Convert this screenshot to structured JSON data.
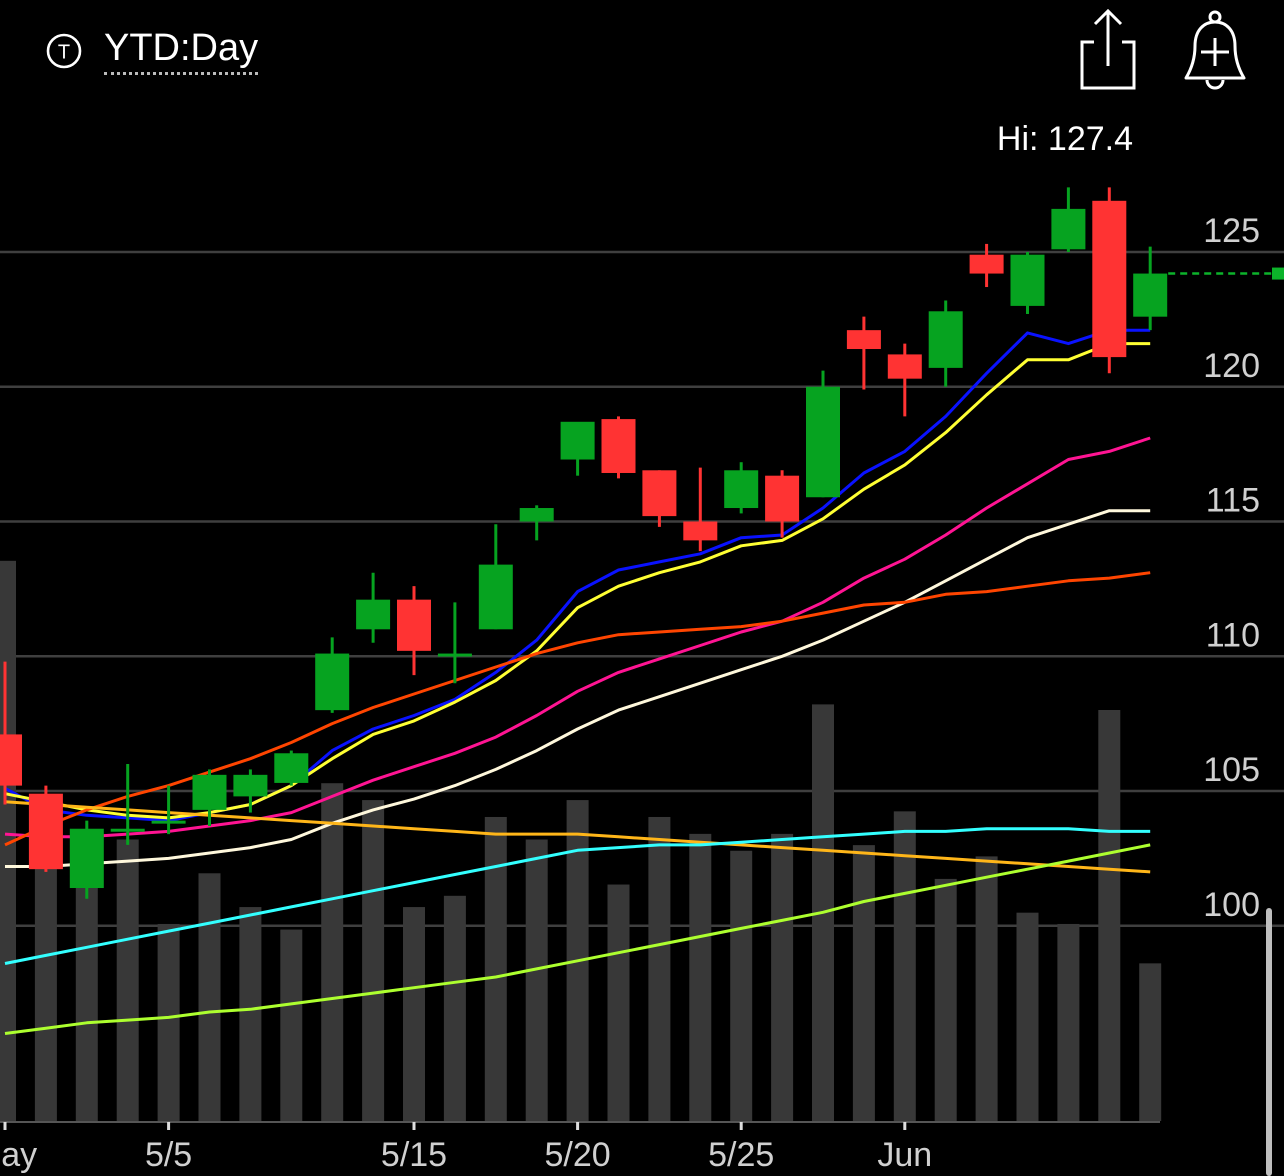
{
  "header": {
    "timeframe_icon": "T",
    "timeframe": "YTD:Day",
    "share_icon": "share-icon",
    "alert_icon": "bell-plus-icon"
  },
  "chart_data": {
    "type": "candlestick",
    "hi_label": "Hi: 127.4",
    "ylim": [
      97,
      130
    ],
    "y_ticks": [
      125,
      120,
      115,
      110,
      105,
      100
    ],
    "x_tick_labels": [
      {
        "label": "May",
        "index": 0
      },
      {
        "label": "5/5",
        "index": 4
      },
      {
        "label": "5/15",
        "index": 10
      },
      {
        "label": "5/20",
        "index": 14
      },
      {
        "label": "5/25",
        "index": 18
      },
      {
        "label": "Jun",
        "index": 22
      }
    ],
    "last_price": 124.2,
    "candles": [
      {
        "o": 107.1,
        "h": 109.8,
        "l": 104.5,
        "c": 105.2
      },
      {
        "o": 104.9,
        "h": 105.2,
        "l": 102.0,
        "c": 102.1
      },
      {
        "o": 101.4,
        "h": 103.9,
        "l": 101.0,
        "c": 103.6
      },
      {
        "o": 103.6,
        "h": 106.0,
        "l": 103.0,
        "c": 103.6
      },
      {
        "o": 103.9,
        "h": 105.2,
        "l": 103.4,
        "c": 103.9
      },
      {
        "o": 104.3,
        "h": 105.8,
        "l": 103.7,
        "c": 105.6
      },
      {
        "o": 104.8,
        "h": 105.8,
        "l": 104.2,
        "c": 105.6
      },
      {
        "o": 105.3,
        "h": 106.5,
        "l": 105.2,
        "c": 106.4
      },
      {
        "o": 108.0,
        "h": 110.7,
        "l": 107.9,
        "c": 110.1
      },
      {
        "o": 111.0,
        "h": 113.1,
        "l": 110.5,
        "c": 112.1
      },
      {
        "o": 112.1,
        "h": 112.6,
        "l": 109.3,
        "c": 110.2
      },
      {
        "o": 110.1,
        "h": 112.0,
        "l": 109.0,
        "c": 110.1
      },
      {
        "o": 111.0,
        "h": 114.9,
        "l": 111.0,
        "c": 113.4
      },
      {
        "o": 115.0,
        "h": 115.6,
        "l": 114.3,
        "c": 115.5
      },
      {
        "o": 117.3,
        "h": 118.5,
        "l": 116.7,
        "c": 118.7
      },
      {
        "o": 118.8,
        "h": 118.9,
        "l": 116.6,
        "c": 116.8
      },
      {
        "o": 116.9,
        "h": 116.9,
        "l": 114.8,
        "c": 115.2
      },
      {
        "o": 115.0,
        "h": 117.0,
        "l": 113.9,
        "c": 114.3
      },
      {
        "o": 115.5,
        "h": 117.2,
        "l": 115.3,
        "c": 116.9
      },
      {
        "o": 116.7,
        "h": 116.9,
        "l": 114.4,
        "c": 115.0
      },
      {
        "o": 115.9,
        "h": 120.6,
        "l": 115.9,
        "c": 120.0
      },
      {
        "o": 122.1,
        "h": 122.6,
        "l": 119.9,
        "c": 121.4
      },
      {
        "o": 121.2,
        "h": 121.6,
        "l": 118.9,
        "c": 120.3
      },
      {
        "o": 120.7,
        "h": 123.2,
        "l": 120.0,
        "c": 122.8
      },
      {
        "o": 124.9,
        "h": 125.3,
        "l": 123.7,
        "c": 124.2
      },
      {
        "o": 123.0,
        "h": 125.0,
        "l": 122.7,
        "c": 124.9
      },
      {
        "o": 125.1,
        "h": 127.4,
        "l": 125.0,
        "c": 126.6
      },
      {
        "o": 126.9,
        "h": 127.4,
        "l": 120.5,
        "c": 121.1
      },
      {
        "o": 122.6,
        "h": 125.2,
        "l": 122.1,
        "c": 124.2
      }
    ],
    "volume": [
      0.995,
      0.48,
      0.45,
      0.5,
      0.35,
      0.44,
      0.38,
      0.34,
      0.6,
      0.57,
      0.38,
      0.4,
      0.54,
      0.5,
      0.57,
      0.42,
      0.54,
      0.51,
      0.48,
      0.51,
      0.74,
      0.49,
      0.55,
      0.43,
      0.47,
      0.37,
      0.35,
      0.73,
      0.28
    ],
    "series": [
      {
        "color": "#0a12ff",
        "values": [
          105.1,
          104.3,
          104.1,
          104.0,
          103.9,
          104.2,
          104.5,
          105.2,
          106.5,
          107.3,
          107.8,
          108.4,
          109.4,
          110.6,
          112.4,
          113.2,
          113.5,
          113.8,
          114.4,
          114.5,
          115.5,
          116.8,
          117.6,
          118.9,
          120.5,
          122.0,
          121.6,
          122.1,
          122.1
        ]
      },
      {
        "color": "#ffff33",
        "values": [
          104.9,
          104.6,
          104.3,
          104.1,
          104.0,
          104.2,
          104.5,
          105.2,
          106.2,
          107.1,
          107.6,
          108.3,
          109.1,
          110.2,
          111.8,
          112.6,
          113.1,
          113.5,
          114.1,
          114.3,
          115.1,
          116.2,
          117.1,
          118.3,
          119.7,
          121.0,
          121.0,
          121.6,
          121.6
        ]
      },
      {
        "color": "#ff1493",
        "values": [
          103.4,
          103.3,
          103.3,
          103.4,
          103.5,
          103.7,
          103.9,
          104.2,
          104.8,
          105.4,
          105.9,
          106.4,
          107.0,
          107.8,
          108.7,
          109.4,
          109.9,
          110.4,
          110.9,
          111.3,
          112.0,
          112.9,
          113.6,
          114.5,
          115.5,
          116.4,
          117.3,
          117.6,
          118.1
        ]
      },
      {
        "color": "#fff8dc",
        "values": [
          102.2,
          102.2,
          102.3,
          102.4,
          102.5,
          102.7,
          102.9,
          103.2,
          103.8,
          104.3,
          104.7,
          105.2,
          105.8,
          106.5,
          107.3,
          108.0,
          108.5,
          109.0,
          109.5,
          110.0,
          110.6,
          111.3,
          112.0,
          112.8,
          113.6,
          114.4,
          114.9,
          115.4,
          115.4
        ]
      },
      {
        "color": "#ff4500",
        "values": [
          103.0,
          103.7,
          104.3,
          104.8,
          105.2,
          105.7,
          106.2,
          106.8,
          107.5,
          108.1,
          108.6,
          109.1,
          109.6,
          110.1,
          110.5,
          110.8,
          110.9,
          111.0,
          111.1,
          111.3,
          111.6,
          111.9,
          112.0,
          112.3,
          112.4,
          112.6,
          112.8,
          112.9,
          113.1
        ]
      },
      {
        "color": "#ffb619",
        "values": [
          104.6,
          104.5,
          104.4,
          104.3,
          104.2,
          104.1,
          104.0,
          103.9,
          103.8,
          103.7,
          103.6,
          103.5,
          103.4,
          103.4,
          103.4,
          103.3,
          103.2,
          103.1,
          103.0,
          102.9,
          102.8,
          102.7,
          102.6,
          102.5,
          102.4,
          102.3,
          102.2,
          102.1,
          102.0
        ]
      },
      {
        "color": "#33ffff",
        "values": [
          98.6,
          98.9,
          99.2,
          99.5,
          99.8,
          100.1,
          100.4,
          100.7,
          101.0,
          101.3,
          101.6,
          101.9,
          102.2,
          102.5,
          102.8,
          102.9,
          103.0,
          103.0,
          103.1,
          103.2,
          103.3,
          103.4,
          103.5,
          103.5,
          103.6,
          103.6,
          103.6,
          103.5,
          103.5
        ]
      },
      {
        "color": "#adff2f",
        "values": [
          96.0,
          96.2,
          96.4,
          96.5,
          96.6,
          96.8,
          96.9,
          97.1,
          97.3,
          97.5,
          97.7,
          97.9,
          98.1,
          98.4,
          98.7,
          99.0,
          99.3,
          99.6,
          99.9,
          100.2,
          100.5,
          100.9,
          101.2,
          101.5,
          101.8,
          102.1,
          102.4,
          102.7,
          103.0
        ]
      }
    ]
  }
}
